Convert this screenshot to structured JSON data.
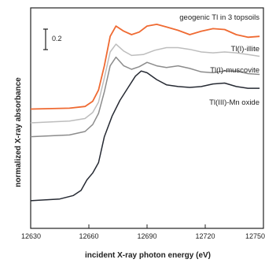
{
  "chart_data": {
    "type": "line",
    "xlabel": "incident X-ray photon energy (eV)",
    "ylabel": "normalized X-ray absorbance",
    "xlim": [
      12630,
      12750
    ],
    "x_ticks": [
      12630,
      12660,
      12690,
      12720,
      12750
    ],
    "y_ticks_shown": false,
    "grid": false,
    "scale_bar_label": "0.2",
    "series": [
      {
        "name": "geogenic Tl in 3 topsoils",
        "color": "#ef6a32",
        "x": [
          12630,
          12650,
          12658,
          12662,
          12665,
          12668,
          12671,
          12674,
          12678,
          12682,
          12686,
          12690,
          12695,
          12700,
          12706,
          12712,
          12718,
          12724,
          12730,
          12736,
          12742,
          12748
        ],
        "y": [
          1.38,
          1.39,
          1.41,
          1.47,
          1.6,
          1.88,
          2.22,
          2.34,
          2.28,
          2.24,
          2.27,
          2.34,
          2.36,
          2.33,
          2.29,
          2.24,
          2.28,
          2.31,
          2.3,
          2.24,
          2.21,
          2.22
        ]
      },
      {
        "name": "Tl(I)-illite",
        "color": "#bdbdbd",
        "x": [
          12630,
          12650,
          12658,
          12662,
          12665,
          12668,
          12671,
          12674,
          12678,
          12682,
          12688,
          12694,
          12700,
          12706,
          12712,
          12718,
          12724,
          12730,
          12736,
          12742,
          12748
        ],
        "y": [
          1.22,
          1.24,
          1.27,
          1.34,
          1.46,
          1.74,
          2.04,
          2.13,
          2.05,
          2.0,
          2.01,
          2.06,
          2.09,
          2.09,
          2.07,
          2.04,
          2.03,
          2.04,
          2.03,
          2.01,
          1.99
        ]
      },
      {
        "name": "Tl(I)-muscovite",
        "color": "#8c8c8c",
        "x": [
          12630,
          12650,
          12658,
          12662,
          12665,
          12668,
          12671,
          12674,
          12678,
          12682,
          12686,
          12690,
          12695,
          12700,
          12706,
          12712,
          12718,
          12724,
          12730,
          12736,
          12742,
          12748
        ],
        "y": [
          1.06,
          1.08,
          1.12,
          1.2,
          1.33,
          1.58,
          1.88,
          1.98,
          1.88,
          1.84,
          1.87,
          1.92,
          1.88,
          1.86,
          1.88,
          1.85,
          1.81,
          1.8,
          1.82,
          1.82,
          1.79,
          1.78
        ]
      },
      {
        "name": "Tl(III)-Mn oxide",
        "color": "#262a33",
        "x": [
          12630,
          12645,
          12652,
          12656,
          12659,
          12662,
          12665,
          12668,
          12672,
          12676,
          12680,
          12684,
          12687,
          12690,
          12695,
          12700,
          12706,
          12712,
          12718,
          12724,
          12730,
          12736,
          12742,
          12748
        ],
        "y": [
          0.32,
          0.34,
          0.38,
          0.44,
          0.56,
          0.64,
          0.76,
          1.06,
          1.3,
          1.48,
          1.62,
          1.76,
          1.82,
          1.8,
          1.72,
          1.66,
          1.64,
          1.63,
          1.64,
          1.67,
          1.68,
          1.64,
          1.62,
          1.62
        ]
      }
    ]
  }
}
